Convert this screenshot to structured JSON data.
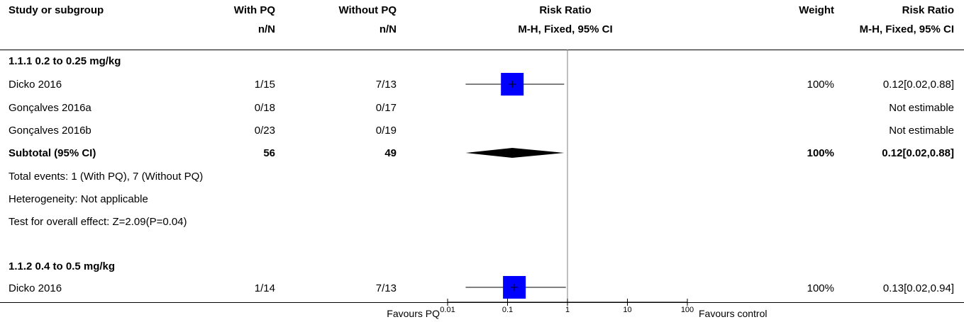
{
  "header": {
    "study": "Study or subgroup",
    "with_pq": "With PQ",
    "without_pq": "Without PQ",
    "risk_ratio": "Risk Ratio",
    "weight": "Weight",
    "risk_ratio_right": "Risk Ratio",
    "nN1": "n/N",
    "nN2": "n/N",
    "method": "M-H, Fixed, 95% CI",
    "method_right": "M-H, Fixed, 95% CI"
  },
  "groups": [
    {
      "title": "1.1.1 0.2 to 0.25 mg/kg",
      "studies": [
        {
          "name": "Dicko 2016",
          "with": "1/15",
          "without": "7/13",
          "weight": "100%",
          "ci": "0.12[0.02,0.88]"
        },
        {
          "name": "Gonçalves 2016a",
          "with": "0/18",
          "without": "0/17",
          "weight": "",
          "ci": "Not estimable"
        },
        {
          "name": "Gonçalves 2016b",
          "with": "0/23",
          "without": "0/19",
          "weight": "",
          "ci": "Not estimable"
        }
      ],
      "subtotal": {
        "name": "Subtotal (95% CI)",
        "with": "56",
        "without": "49",
        "weight": "100%",
        "ci": "0.12[0.02,0.88]"
      },
      "notes": [
        "Total events: 1 (With PQ), 7 (Without PQ)",
        "Heterogeneity: Not applicable",
        "Test for overall effect: Z=2.09(P=0.04)"
      ]
    },
    {
      "title": "1.1.2 0.4 to 0.5 mg/kg",
      "studies": [
        {
          "name": "Dicko 2016",
          "with": "1/14",
          "without": "7/13",
          "weight": "100%",
          "ci": "0.13[0.02,0.94]"
        }
      ]
    }
  ],
  "footer": {
    "favours_left": "Favours PQ",
    "favours_right": "Favours control"
  },
  "colors": {
    "square": "#0000ff",
    "diamond": "#000000",
    "line": "#000000",
    "reference_line": "#808080"
  },
  "chart_data": {
    "type": "forest",
    "scale": "log",
    "xlim": [
      0.01,
      100
    ],
    "reference": 1,
    "ticks": [
      "0.01",
      "0.1",
      "1",
      "10",
      "100"
    ],
    "tick_values": [
      0.01,
      0.1,
      1,
      10,
      100
    ],
    "studies": [
      {
        "group": "1.1.1 0.2 to 0.25 mg/kg",
        "name": "Dicko 2016",
        "kind": "study",
        "rr": 0.12,
        "lo": 0.02,
        "hi": 0.88,
        "weight": 100
      },
      {
        "group": "1.1.1 0.2 to 0.25 mg/kg",
        "name": "Subtotal (95% CI)",
        "kind": "diamond",
        "rr": 0.12,
        "lo": 0.02,
        "hi": 0.88
      },
      {
        "group": "1.1.2 0.4 to 0.5 mg/kg",
        "name": "Dicko 2016",
        "kind": "study",
        "rr": 0.13,
        "lo": 0.02,
        "hi": 0.94,
        "weight": 100
      }
    ]
  }
}
